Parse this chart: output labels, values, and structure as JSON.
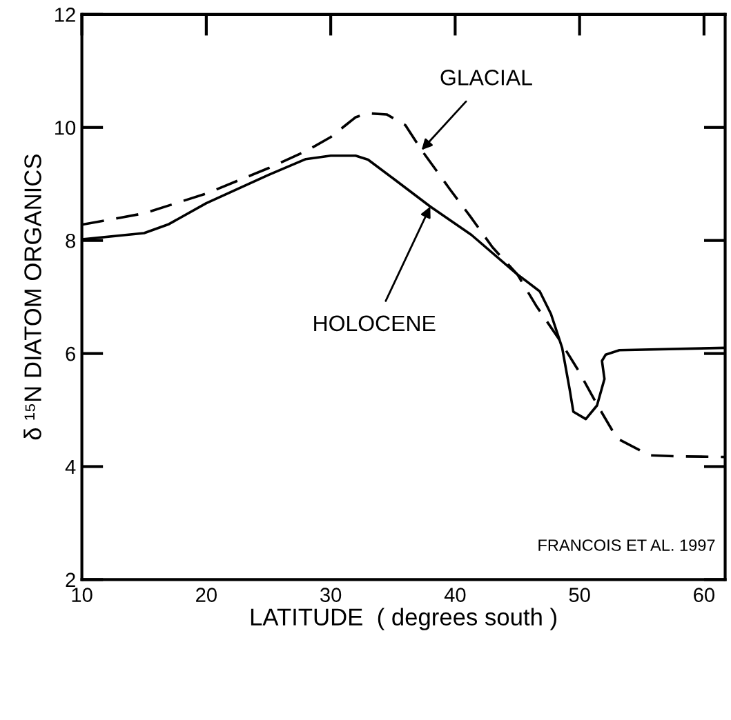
{
  "chart_data": {
    "type": "line",
    "xlabel": "LATITUDE  ( degrees south )",
    "ylabel": "δ ¹⁵N DIATOM ORGANICS",
    "xlim": [
      10,
      61.7
    ],
    "xticks": [
      10,
      20,
      30,
      40,
      50,
      60
    ],
    "ylim": [
      2,
      12
    ],
    "yticks": [
      2,
      4,
      6,
      8,
      10,
      12
    ],
    "grid": false,
    "legend": false,
    "marker": "none",
    "series": [
      {
        "color": "#000000",
        "line_style": "dashed",
        "x": [
          10,
          13,
          15,
          20,
          25,
          28,
          30,
          32,
          33,
          34.5,
          36,
          37.3,
          39.6,
          41.2,
          43,
          45,
          46.5,
          48.3,
          49.9,
          51.4,
          53,
          55.6,
          58,
          61.7
        ],
        "values": [
          8.28,
          8.4,
          8.48,
          8.83,
          9.28,
          9.58,
          9.83,
          10.18,
          10.25,
          10.23,
          10.04,
          9.6,
          8.9,
          8.43,
          7.88,
          7.4,
          6.85,
          6.27,
          5.7,
          5.1,
          4.5,
          4.2,
          4.18,
          4.17
        ]
      },
      {
        "color": "#000000",
        "line_style": "solid",
        "x": [
          10,
          15,
          17,
          20,
          25,
          28,
          30,
          32,
          33,
          35,
          38,
          41.3,
          45,
          46.8,
          47.7,
          48.6,
          49.2,
          49.5,
          50.5,
          51.4,
          52.0,
          51.8,
          52.1,
          53.2,
          61.7
        ],
        "values": [
          8.02,
          8.13,
          8.29,
          8.66,
          9.16,
          9.44,
          9.5,
          9.5,
          9.43,
          9.1,
          8.6,
          8.1,
          7.4,
          7.1,
          6.7,
          6.1,
          5.37,
          4.97,
          4.84,
          5.08,
          5.55,
          5.87,
          5.98,
          6.06,
          6.1
        ]
      }
    ],
    "annotations": [
      {
        "text": "GLACIAL",
        "x": 37.3,
        "y": 9.6
      },
      {
        "text": "HOLOCENE",
        "x": 38,
        "y": 8.6
      },
      "FRANCOIS ET AL. 1997"
    ]
  }
}
